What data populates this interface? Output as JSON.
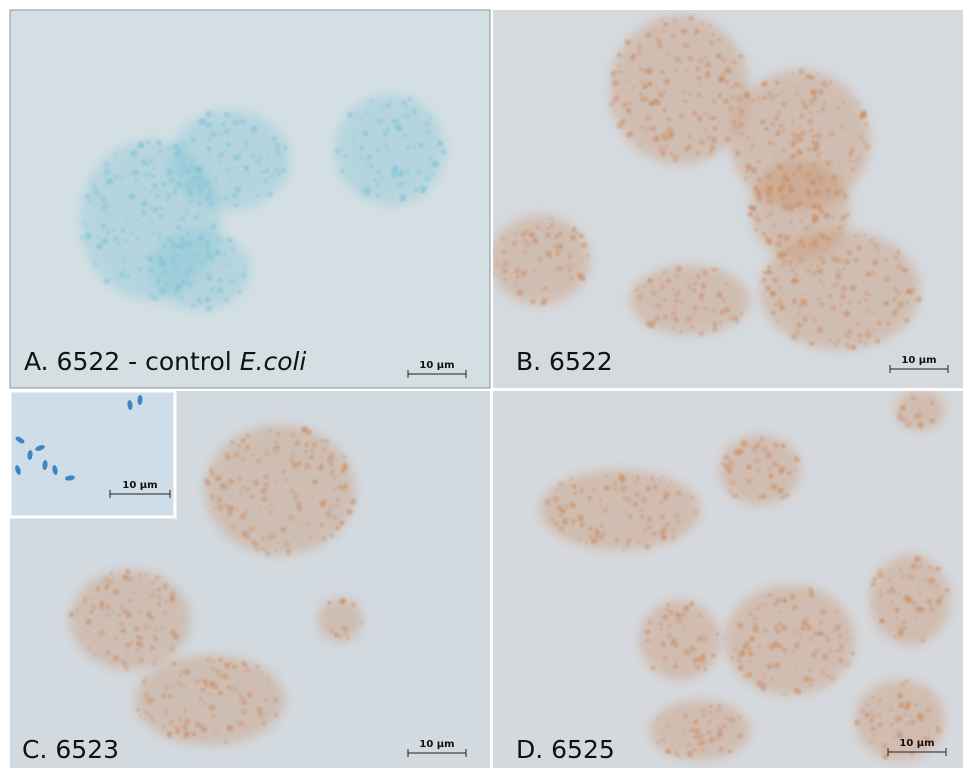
{
  "panels": [
    {
      "label": "A. 6522 - control ",
      "label_italic": "E.coli",
      "scale_bar": "10 µm"
    },
    {
      "label": "B. 6522",
      "scale_bar": "10 µm"
    },
    {
      "label": "C. 6523",
      "scale_bar": "10 µm"
    },
    {
      "label": "D. 6525",
      "scale_bar": "10 µm"
    }
  ],
  "inset": {
    "scale_bar": "10 µm"
  }
}
